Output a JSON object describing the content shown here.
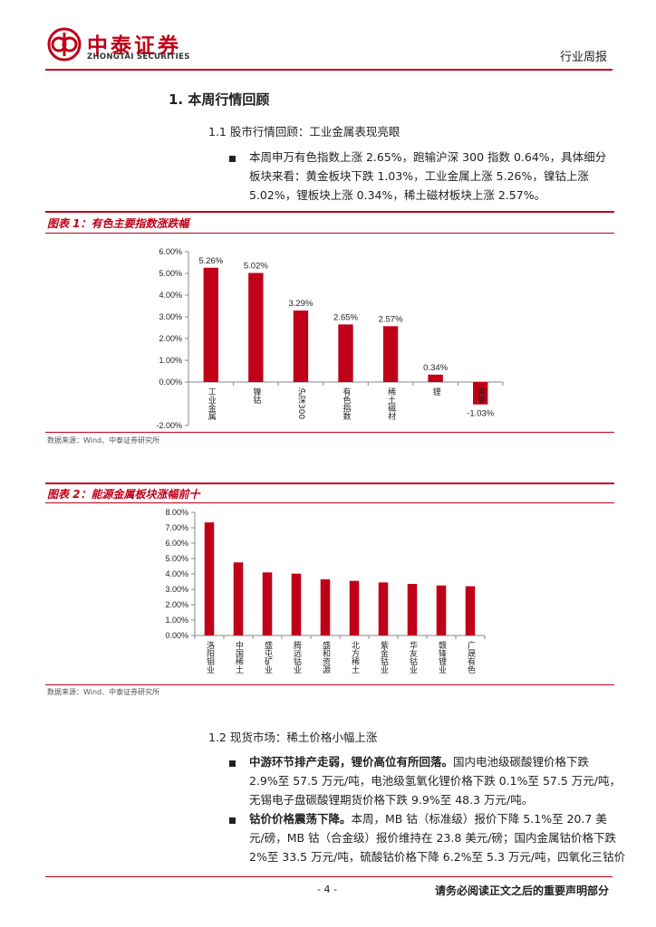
{
  "header": {
    "logo_cn": "中泰证券",
    "logo_en": "ZHONGTAI SECURITIES",
    "doc_type": "行业周报",
    "brand_color": "#c00018",
    "logo_icon": "zhongtai-logo-icon"
  },
  "section1": {
    "title": "1. 本周行情回顾",
    "sub11_title": "1.1 股市行情回顾：工业金属表现亮眼",
    "para_lines": [
      "本周申万有色指数上涨 2.65%，跑输沪深 300 指数 0.64%，具体细分",
      "板块来看：黄金板块下跌 1.03%，工业金属上涨 5.26%，镍钴上涨",
      "5.02%，锂板块上涨 0.34%，稀土磁材板块上涨 2.57%。"
    ]
  },
  "figure1": {
    "title": "图表 1：有色主要指数涨跌幅",
    "source": "数据来源：Wind、中泰证券研究所"
  },
  "figure2": {
    "title": "图表 2：能源金属板块涨幅前十",
    "source": "数据来源：Wind、中泰证券研究所"
  },
  "chart_data": [
    {
      "type": "bar",
      "categories": [
        "工业金属",
        "镍钴",
        "沪深300",
        "有色指数",
        "稀土磁材",
        "锂",
        "黄金"
      ],
      "values": [
        5.26,
        5.02,
        3.29,
        2.65,
        2.57,
        0.34,
        -1.03
      ],
      "data_labels": [
        "5.26%",
        "5.02%",
        "3.29%",
        "2.65%",
        "2.57%",
        "0.34%",
        "-1.03%"
      ],
      "ylim": [
        -2,
        6
      ],
      "yticks": [
        "-2.00%",
        "0.00%",
        "1.00%",
        "2.00%",
        "3.00%",
        "4.00%",
        "5.00%",
        "6.00%"
      ],
      "ytick_values": [
        -2,
        0,
        1,
        2,
        3,
        4,
        5,
        6
      ],
      "bar_color": "#c00018",
      "grid": false,
      "title": "",
      "xlabel": "",
      "ylabel": ""
    },
    {
      "type": "bar",
      "categories": [
        "洛阳钼业",
        "中国稀土",
        "盛屯矿业",
        "腾远钴业",
        "盛和资源",
        "北方稀土",
        "紫金钴业",
        "华友钴业",
        "赣锋锂业",
        "广晟有色"
      ],
      "values": [
        7.35,
        4.75,
        4.1,
        4.02,
        3.65,
        3.55,
        3.45,
        3.35,
        3.25,
        3.2
      ],
      "ylim": [
        0,
        8
      ],
      "yticks": [
        "0.00%",
        "1.00%",
        "2.00%",
        "3.00%",
        "4.00%",
        "5.00%",
        "6.00%",
        "7.00%",
        "8.00%"
      ],
      "ytick_values": [
        0,
        1,
        2,
        3,
        4,
        5,
        6,
        7,
        8
      ],
      "bar_color": "#c00018",
      "grid": false,
      "title": "",
      "xlabel": "",
      "ylabel": ""
    }
  ],
  "section12": {
    "title": "1.2 现货市场：稀土价格小幅上涨",
    "bullet1_bold": "中游环节排产走弱，锂价高位有所回落。",
    "bullet1_lines": [
      "国内电池级碳酸锂价格下跌",
      "2.9%至 57.5 万元/吨，电池级氢氧化锂价格下跌 0.1%至 57.5 万元/吨，",
      "无锡电子盘碳酸锂期货价格下跌 9.9%至 48.3 万元/吨。"
    ],
    "bullet2_bold": "钴价价格震荡下降。",
    "bullet2_lines": [
      "本周，MB 钴（标准级）报价下降 5.1%至 20.7 美",
      "元/磅，MB 钴（合金级）报价维持在 23.8 美元/磅；国内金属钴价格下跌",
      "2%至 33.5 万元/吨，硫酸钴价格下降 6.2%至 5.3 万元/吨，四氧化三钴价"
    ]
  },
  "footer": {
    "page": "- 4 -",
    "disclaimer": "请务必阅读正文之后的重要声明部分"
  }
}
